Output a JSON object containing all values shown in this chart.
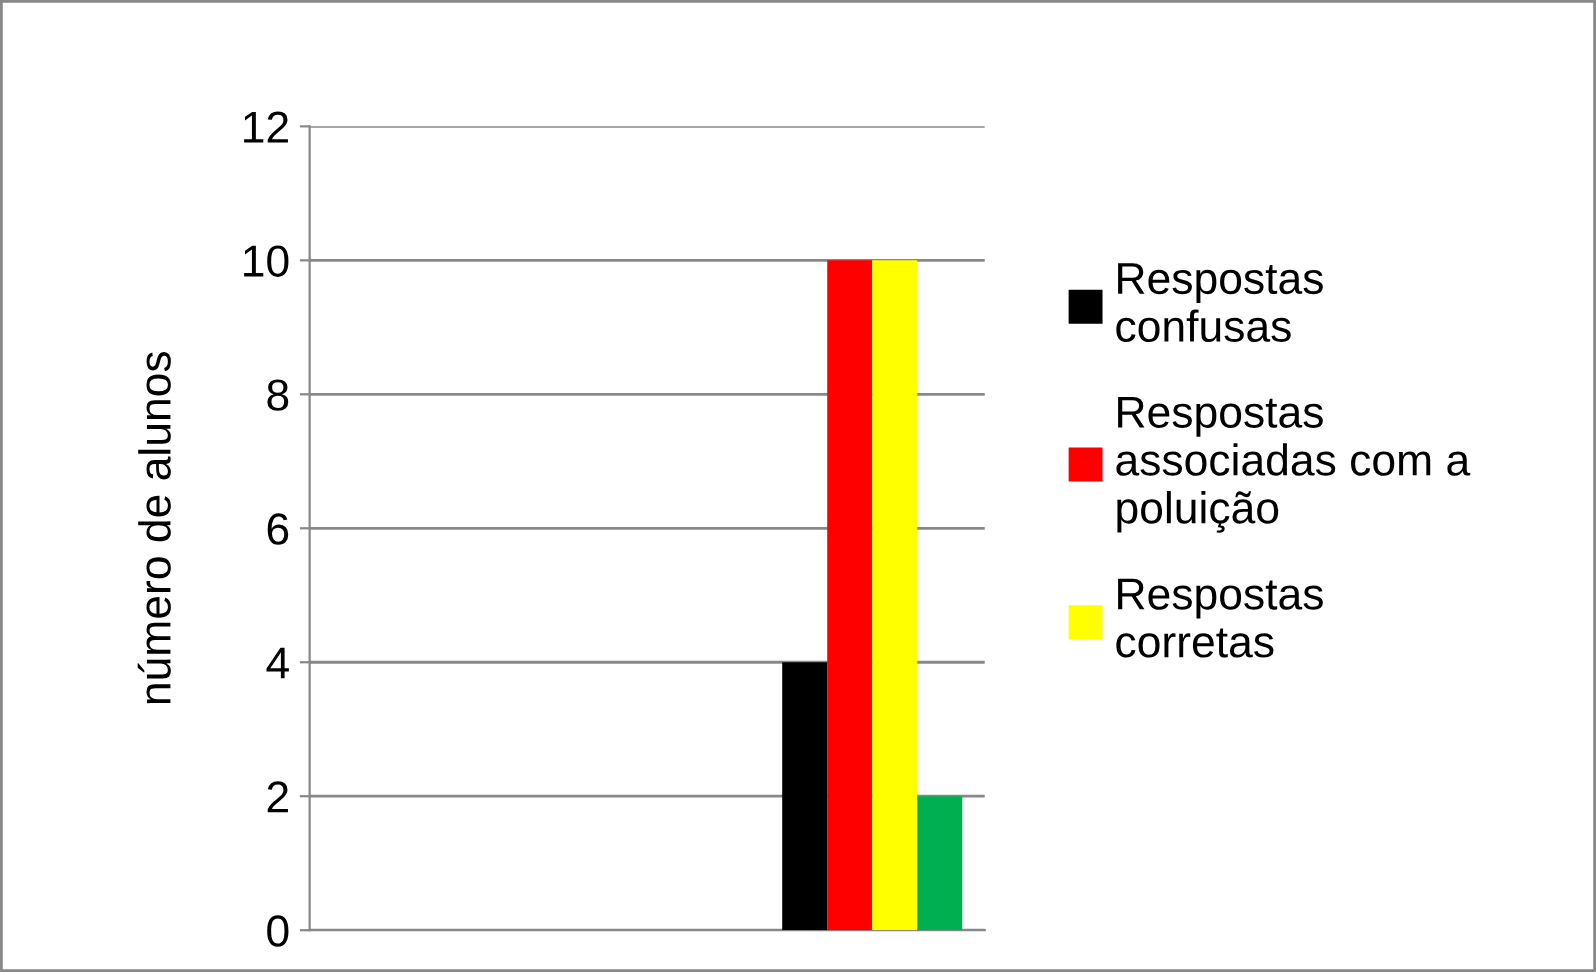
{
  "chart_data": {
    "type": "bar",
    "ylabel": "número de alunos",
    "categories": [
      null,
      null,
      null
    ],
    "series": [
      {
        "name": "Respostas\nconfusas",
        "color": "#000000",
        "values": [
          null,
          null,
          4
        ]
      },
      {
        "name": "Respostas\nassociadas com a\npoluição",
        "color": "#ff0000",
        "values": [
          null,
          null,
          10
        ]
      },
      {
        "name": "Respostas\ncorretas",
        "color": "#ffff00",
        "values": [
          null,
          null,
          10
        ]
      },
      {
        "color": "#00b050",
        "values": [
          null,
          null,
          2
        ]
      }
    ],
    "ylim": [
      0,
      12
    ],
    "yticks": [
      0,
      2,
      4,
      6,
      8,
      10,
      12
    ],
    "grid": "y",
    "legend": "right"
  }
}
